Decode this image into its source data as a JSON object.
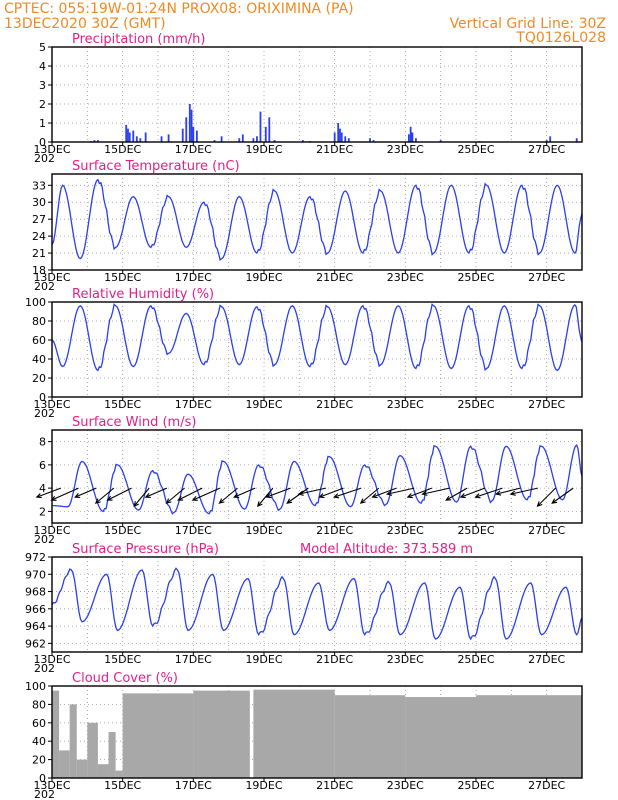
{
  "header": {
    "line1_left": "CPTEC:   055:19W-01:24N   PROX08: ORIXIMINA (PA)",
    "line2_left": "13DEC2020 30Z (GMT)",
    "line2_right": "Vertical Grid Line: 30Z",
    "line3_right": "TQ0126L028"
  },
  "colors": {
    "header": "#f08a24",
    "title": "#e0218a",
    "series": "#2a3ff0",
    "cloud": "#a8a8a8",
    "vector": "#000000"
  },
  "x_axis": {
    "start": "13DEC",
    "end": "28DEC",
    "tick_labels": [
      "13DEC",
      "15DEC",
      "17DEC",
      "19DEC",
      "21DEC",
      "23DEC",
      "25DEC",
      "27DEC"
    ],
    "tick_days": [
      0,
      2,
      4,
      6,
      8,
      10,
      12,
      14
    ],
    "year_fragment": "202",
    "grid_days": [
      1,
      2,
      3,
      4,
      5,
      6,
      7,
      8,
      9,
      10,
      11,
      12,
      13,
      14
    ]
  },
  "panels": [
    {
      "id": "precip",
      "title": "Precipitation  (mm/h)",
      "note": "",
      "type": "bar",
      "ylim": [
        0,
        5
      ],
      "yticks": [
        "0",
        "1",
        "2",
        "3",
        "4",
        "5"
      ],
      "ytick_values": [
        0,
        1,
        2,
        3,
        4,
        5
      ],
      "chart_data": {
        "type": "bar",
        "x_days": [
          1.1,
          1.2,
          1.3,
          2.1,
          2.15,
          2.2,
          2.3,
          2.4,
          2.5,
          2.65,
          3.1,
          3.3,
          3.7,
          3.8,
          3.9,
          3.95,
          4.0,
          4.1,
          4.6,
          4.8,
          5.3,
          5.4,
          5.7,
          5.8,
          5.9,
          6.05,
          6.15,
          6.3,
          7.1,
          7.3,
          8.0,
          8.1,
          8.15,
          8.2,
          8.3,
          8.4,
          9.0,
          9.1,
          10.1,
          10.15,
          10.2,
          10.3,
          11.0,
          12.1,
          14.0,
          14.1,
          14.85
        ],
        "values": [
          0.05,
          0.1,
          0.1,
          0.9,
          0.7,
          0.5,
          0.6,
          0.3,
          0.2,
          0.5,
          0.3,
          0.4,
          0.7,
          1.3,
          2.0,
          1.7,
          0.8,
          0.6,
          0.1,
          0.3,
          0.2,
          0.4,
          0.2,
          0.3,
          1.6,
          0.8,
          1.3,
          0.1,
          0.1,
          0.05,
          0.5,
          1.0,
          0.7,
          0.5,
          0.3,
          0.2,
          0.2,
          0.1,
          0.4,
          0.8,
          0.5,
          0.2,
          0.1,
          0.05,
          0.1,
          0.3,
          0.2
        ]
      }
    },
    {
      "id": "temp",
      "title": "Surface Temperature  (nC)",
      "note": "",
      "type": "line",
      "ylim": [
        18,
        35
      ],
      "yticks": [
        "18",
        "21",
        "24",
        "27",
        "30",
        "33"
      ],
      "ytick_values": [
        18,
        21,
        24,
        27,
        30,
        33
      ],
      "chart_data": {
        "type": "line",
        "daily_min": [
          20,
          22,
          22,
          22,
          20,
          21,
          21,
          21,
          21,
          21,
          21,
          21,
          21,
          21,
          21,
          19
        ],
        "daily_max": [
          33,
          34,
          31,
          31,
          30,
          31,
          32,
          31,
          32,
          32,
          33,
          33,
          33,
          33,
          33,
          33
        ],
        "peak_frac": 0.3,
        "trough_frac": 0.8,
        "start": 22.5,
        "end": 28
      }
    },
    {
      "id": "rh",
      "title": "Relative Humidity  (%)",
      "note": "",
      "type": "line",
      "ylim": [
        0,
        100
      ],
      "yticks": [
        "0",
        "20",
        "40",
        "60",
        "80",
        "100"
      ],
      "ytick_values": [
        0,
        20,
        40,
        60,
        80,
        100
      ],
      "chart_data": {
        "type": "line",
        "daily_min": [
          32,
          28,
          32,
          46,
          34,
          34,
          34,
          32,
          34,
          34,
          30,
          30,
          30,
          30,
          28,
          30
        ],
        "daily_max": [
          96,
          96,
          96,
          88,
          95,
          95,
          96,
          95,
          96,
          96,
          96,
          96,
          96,
          96,
          97,
          97
        ],
        "peak_frac": 0.8,
        "trough_frac": 0.3,
        "start": 60,
        "end": 58
      }
    },
    {
      "id": "wind",
      "title": "Surface Wind  (m/s)",
      "note": "",
      "type": "wind",
      "ylim": [
        1,
        9
      ],
      "yticks": [
        "2",
        "4",
        "6",
        "8"
      ],
      "ytick_values": [
        2,
        4,
        6,
        8
      ],
      "chart_data": {
        "type": "line",
        "daily_min": [
          2.4,
          2.0,
          2.1,
          1.9,
          1.8,
          2.2,
          2.2,
          2.5,
          2.4,
          2.6,
          2.7,
          2.8,
          2.9,
          3.0,
          3.0,
          3.0
        ],
        "daily_max": [
          6.3,
          6.0,
          5.5,
          5.2,
          6.3,
          6.0,
          6.3,
          6.7,
          6.0,
          6.8,
          7.6,
          7.6,
          7.6,
          7.6,
          7.7,
          8.0
        ],
        "peak_frac": 0.85,
        "trough_frac": 0.45,
        "start": 2.5,
        "end": 5.0,
        "vectors": {
          "x_days": [
            0.25,
            0.75,
            1.25,
            1.75,
            2.25,
            2.75,
            3.25,
            3.75,
            4.25,
            4.75,
            5.25,
            5.75,
            6.25,
            6.75,
            7.25,
            7.75,
            8.25,
            8.75,
            9.25,
            9.75,
            10.25,
            10.75,
            11.25,
            11.75,
            12.25,
            12.75,
            13.25,
            13.75,
            14.25,
            14.75
          ],
          "u": [
            -0.8,
            -0.9,
            -0.7,
            -0.6,
            -0.8,
            -0.5,
            -0.7,
            -0.6,
            -0.8,
            -0.9,
            -0.6,
            -0.7,
            -0.5,
            -0.8,
            -0.7,
            -0.9,
            -0.8,
            -0.9,
            -0.6,
            -0.8,
            -0.9,
            -0.8,
            -0.9,
            -0.7,
            -0.8,
            -0.9,
            -0.8,
            -0.9,
            -0.6,
            -0.7
          ],
          "v": [
            -0.3,
            -0.4,
            -0.3,
            -0.5,
            -0.4,
            -0.6,
            -0.3,
            -0.5,
            -0.4,
            -0.4,
            -0.5,
            -0.3,
            -0.6,
            -0.3,
            -0.5,
            -0.2,
            -0.3,
            -0.3,
            -0.5,
            -0.3,
            -0.2,
            -0.3,
            -0.2,
            -0.4,
            -0.3,
            -0.3,
            -0.2,
            -0.2,
            -0.6,
            -0.5
          ]
        }
      }
    },
    {
      "id": "press",
      "title": "Surface Pressure  (hPa)",
      "note": "Model Altitude: 373.589  m",
      "type": "line",
      "ylim": [
        961,
        972
      ],
      "yticks": [
        "962",
        "964",
        "966",
        "968",
        "970",
        "972"
      ],
      "ytick_values": [
        962,
        964,
        966,
        968,
        970,
        972
      ],
      "chart_data": {
        "type": "line",
        "daily_min": [
          964.5,
          963.5,
          964.0,
          963.5,
          963.5,
          963.0,
          963.0,
          963.5,
          963.0,
          963.0,
          962.5,
          962.5,
          962.5,
          963.0,
          963.0,
          962.5
        ],
        "daily_max": [
          970.5,
          970.0,
          970.5,
          970.5,
          970.0,
          969.5,
          969.5,
          969.0,
          969.5,
          969.0,
          969.0,
          968.5,
          969.5,
          969.0,
          968.5,
          968.0
        ],
        "peak_frac": 0.55,
        "trough_frac": 0.85,
        "start": 966.5,
        "end": 965.0
      }
    },
    {
      "id": "cloud",
      "title": "Cloud Cover  (%)",
      "note": "",
      "type": "area",
      "ylim": [
        0,
        100
      ],
      "yticks": [
        "0",
        "20",
        "40",
        "60",
        "80",
        "100"
      ],
      "ytick_values": [
        0,
        20,
        40,
        60,
        80,
        100
      ],
      "chart_data": {
        "type": "bar",
        "segments": [
          {
            "from": 0.0,
            "to": 0.2,
            "value": 95
          },
          {
            "from": 0.2,
            "to": 0.5,
            "value": 30
          },
          {
            "from": 0.5,
            "to": 0.7,
            "value": 80
          },
          {
            "from": 0.7,
            "to": 1.0,
            "value": 20
          },
          {
            "from": 1.0,
            "to": 1.3,
            "value": 60
          },
          {
            "from": 1.3,
            "to": 1.6,
            "value": 15
          },
          {
            "from": 1.6,
            "to": 1.8,
            "value": 50
          },
          {
            "from": 1.8,
            "to": 2.0,
            "value": 8
          },
          {
            "from": 2.0,
            "to": 4.0,
            "value": 92
          },
          {
            "from": 4.0,
            "to": 5.6,
            "value": 95
          },
          {
            "from": 5.6,
            "to": 5.7,
            "value": 0
          },
          {
            "from": 5.7,
            "to": 8.0,
            "value": 96
          },
          {
            "from": 8.0,
            "to": 10.0,
            "value": 90
          },
          {
            "from": 10.0,
            "to": 12.0,
            "value": 88
          },
          {
            "from": 12.0,
            "to": 15.0,
            "value": 90
          }
        ]
      }
    }
  ]
}
